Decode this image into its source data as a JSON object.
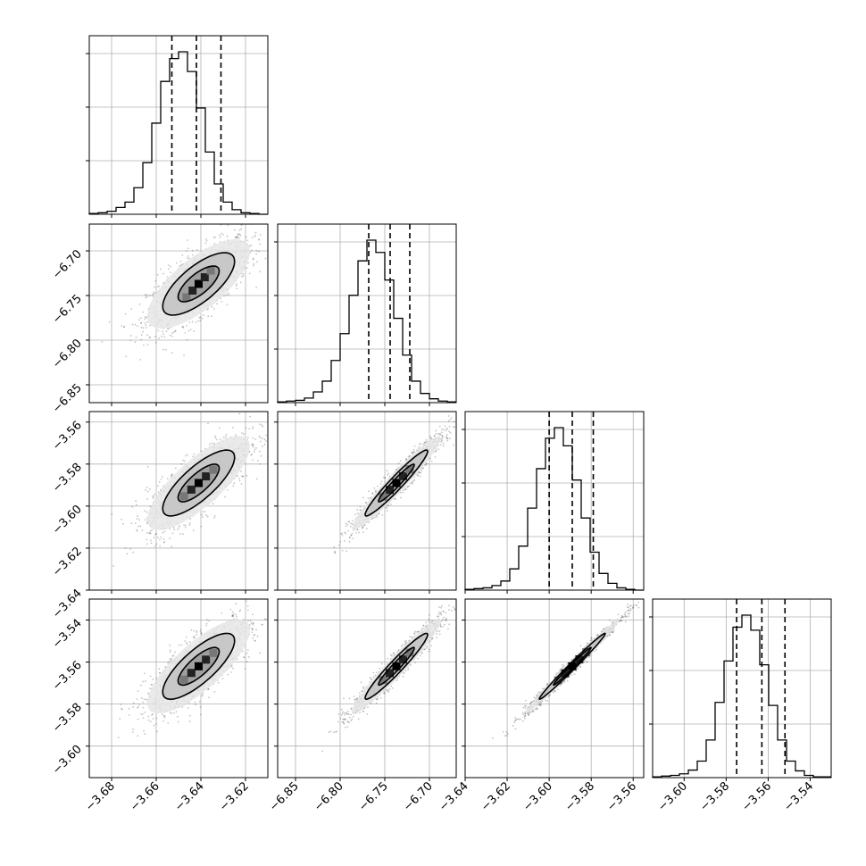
{
  "chart_data": {
    "type": "corner",
    "description_free": true,
    "parameters": [
      {
        "ticks": [
          -3.68,
          -3.66,
          -3.64,
          -3.62
        ],
        "tick_labels": [
          "−3.68",
          "−3.66",
          "−3.64",
          "−3.62"
        ],
        "range": [
          -3.69,
          -3.61
        ],
        "mean": -3.641,
        "sigma": 0.0115,
        "quantiles": [
          -3.653,
          -3.642,
          -3.631
        ]
      },
      {
        "ticks": [
          -6.85,
          -6.8,
          -6.75,
          -6.7
        ],
        "tick_labels": [
          "−6.85",
          "−6.80",
          "−6.75",
          "−6.70"
        ],
        "range": [
          -6.87,
          -6.67
        ],
        "mean": -6.737,
        "sigma": 0.025,
        "quantiles": [
          -6.768,
          -6.744,
          -6.722
        ]
      },
      {
        "ticks": [
          -3.64,
          -3.62,
          -3.6,
          -3.58,
          -3.56
        ],
        "tick_labels": [
          "−3.64",
          "−3.62",
          "−3.60",
          "−3.58",
          "−3.56"
        ],
        "range": [
          -3.64,
          -3.555
        ],
        "mean": -3.589,
        "sigma": 0.0112,
        "quantiles": [
          -3.6,
          -3.589,
          -3.579
        ]
      },
      {
        "ticks": [
          -3.6,
          -3.58,
          -3.56,
          -3.54
        ],
        "tick_labels": [
          "−3.60",
          "−3.58",
          "−3.56",
          "−3.54"
        ],
        "range": [
          -3.615,
          -3.53
        ],
        "mean": -3.562,
        "sigma": 0.0112,
        "quantiles": [
          -3.575,
          -3.563,
          -3.552
        ]
      }
    ],
    "histograms": [
      [
        1,
        2,
        4,
        9,
        16,
        35,
        68,
        120,
        175,
        205,
        214,
        188,
        140,
        82,
        40,
        16,
        6,
        2,
        1,
        0
      ],
      [
        1,
        2,
        3,
        6,
        14,
        28,
        55,
        90,
        140,
        185,
        212,
        196,
        160,
        110,
        62,
        28,
        12,
        5,
        2,
        1
      ],
      [
        1,
        2,
        3,
        6,
        12,
        28,
        58,
        108,
        160,
        200,
        214,
        190,
        145,
        95,
        50,
        22,
        9,
        3,
        1,
        0
      ],
      [
        1,
        2,
        3,
        5,
        10,
        22,
        50,
        100,
        155,
        200,
        216,
        196,
        150,
        96,
        50,
        22,
        9,
        3,
        1,
        1
      ]
    ],
    "correlations": [
      {
        "i": 1,
        "j": 0,
        "rho": 0.72
      },
      {
        "i": 2,
        "j": 0,
        "rho": 0.78
      },
      {
        "i": 2,
        "j": 1,
        "rho": 0.96
      },
      {
        "i": 3,
        "j": 0,
        "rho": 0.78
      },
      {
        "i": 3,
        "j": 1,
        "rho": 0.96
      },
      {
        "i": 3,
        "j": 2,
        "rho": 0.99
      }
    ],
    "grid": true,
    "colors": {
      "line": "#000000",
      "grid": "#b0b0b0",
      "points": "#555555",
      "fill_light": "#e6e6e6",
      "fill_mid": "#9a9a9a",
      "fill_dark": "#000000"
    }
  }
}
